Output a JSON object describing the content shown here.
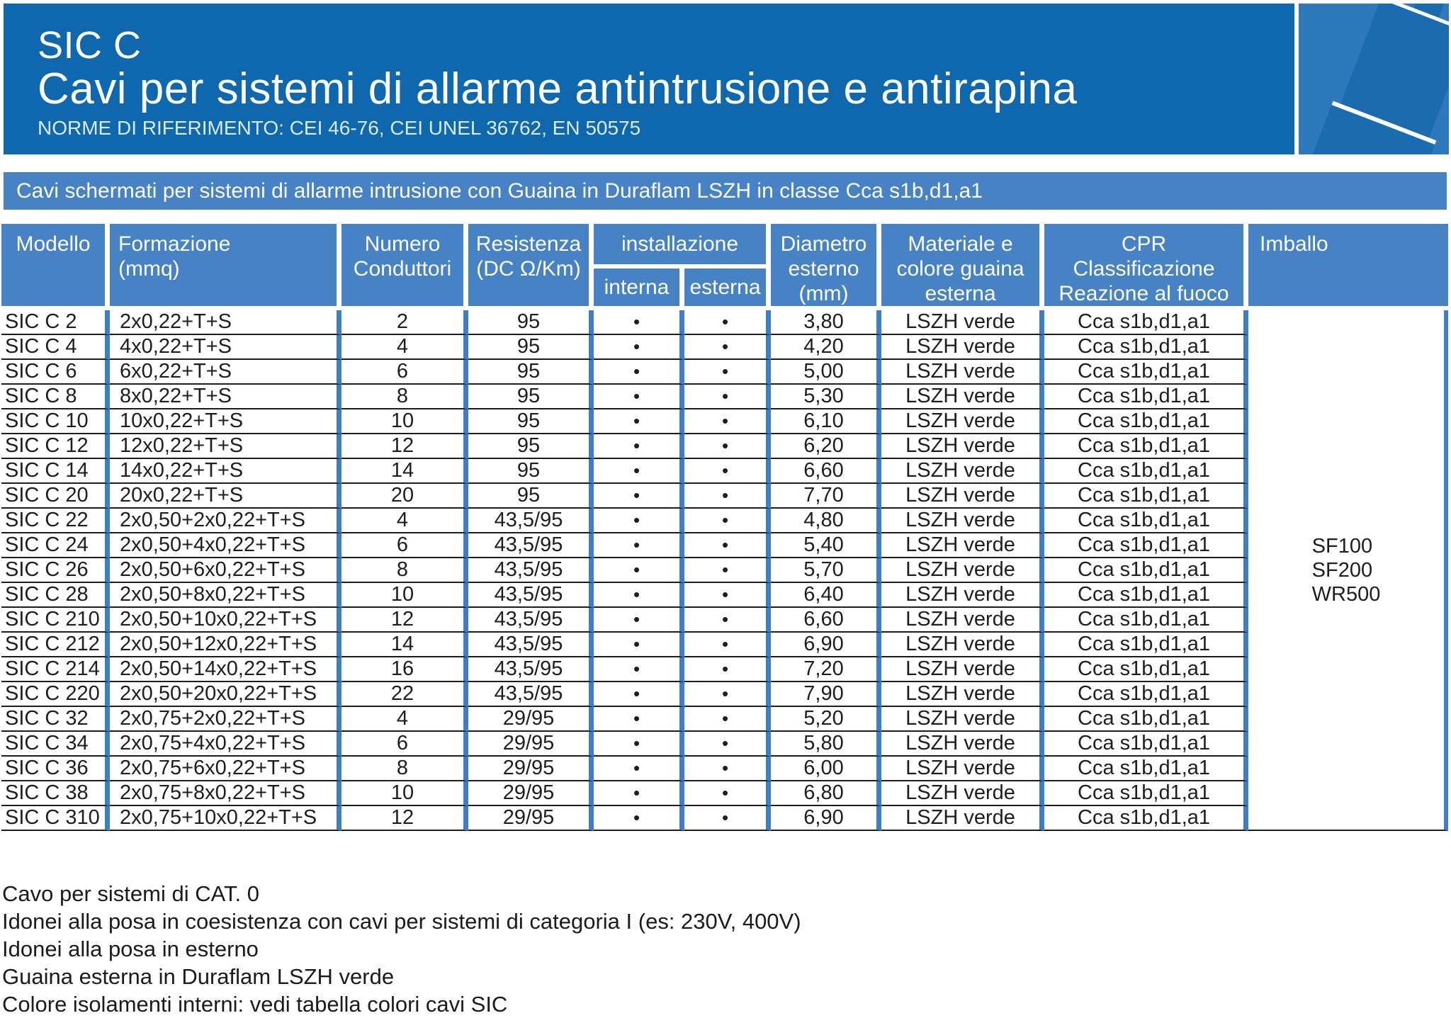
{
  "colors": {
    "dark_header_blue": "#0f67ae",
    "table_blue": "#4682c4",
    "column_separator_blue": "#3e7ec6",
    "row_line": "#1d1d1d",
    "body_text": "#1e1e1e",
    "art_background_blue": "#2d79bc",
    "art_band_blue": "#1a6bb0",
    "norms_text": "#d9ecf8"
  },
  "header": {
    "product_line": "SIC C",
    "title": "Cavi per sistemi di allarme antintrusione e antirapina",
    "reference_norms": "NORME DI RIFERIMENTO: CEI 46-76, CEI UNEL 36762, EN 50575"
  },
  "banner": {
    "text": "Cavi schermati per sistemi di allarme intrusione con Guaina in Duraflam LSZH in classe Cca s1b,d1,a1"
  },
  "table": {
    "headers": {
      "modello": "Modello",
      "formazione": "Formazione\n(mmq)",
      "numero_conduttori": "Numero\nConduttori",
      "resistenza": "Resistenza\n(DC Ω/Km)",
      "installazione": "installazione",
      "interna": "interna",
      "esterna": "esterna",
      "diametro": "Diametro\nesterno\n(mm)",
      "materiale": "Materiale e\ncolore guaina\nesterna",
      "cpr": "CPR\nClassificazione\nReazione al fuoco",
      "imballo": "Imballo"
    },
    "rows": [
      {
        "modello": "SIC C 2",
        "formazione": "2x0,22+T+S",
        "conduttori": "2",
        "resistenza": "95",
        "interna": "•",
        "esterna": "•",
        "diametro": "3,80",
        "materiale": "LSZH verde",
        "cpr": "Cca s1b,d1,a1"
      },
      {
        "modello": "SIC C 4",
        "formazione": "4x0,22+T+S",
        "conduttori": "4",
        "resistenza": "95",
        "interna": "•",
        "esterna": "•",
        "diametro": "4,20",
        "materiale": "LSZH verde",
        "cpr": "Cca s1b,d1,a1"
      },
      {
        "modello": "SIC C 6",
        "formazione": "6x0,22+T+S",
        "conduttori": "6",
        "resistenza": "95",
        "interna": "•",
        "esterna": "•",
        "diametro": "5,00",
        "materiale": "LSZH verde",
        "cpr": "Cca s1b,d1,a1"
      },
      {
        "modello": "SIC C 8",
        "formazione": "8x0,22+T+S",
        "conduttori": "8",
        "resistenza": "95",
        "interna": "•",
        "esterna": "•",
        "diametro": "5,30",
        "materiale": "LSZH verde",
        "cpr": "Cca s1b,d1,a1"
      },
      {
        "modello": "SIC C 10",
        "formazione": "10x0,22+T+S",
        "conduttori": "10",
        "resistenza": "95",
        "interna": "•",
        "esterna": "•",
        "diametro": "6,10",
        "materiale": "LSZH verde",
        "cpr": "Cca s1b,d1,a1"
      },
      {
        "modello": "SIC C 12",
        "formazione": "12x0,22+T+S",
        "conduttori": "12",
        "resistenza": "95",
        "interna": "•",
        "esterna": "•",
        "diametro": "6,20",
        "materiale": "LSZH verde",
        "cpr": "Cca s1b,d1,a1"
      },
      {
        "modello": "SIC C 14",
        "formazione": "14x0,22+T+S",
        "conduttori": "14",
        "resistenza": "95",
        "interna": "•",
        "esterna": "•",
        "diametro": "6,60",
        "materiale": "LSZH verde",
        "cpr": "Cca s1b,d1,a1"
      },
      {
        "modello": "SIC C 20",
        "formazione": "20x0,22+T+S",
        "conduttori": "20",
        "resistenza": "95",
        "interna": "•",
        "esterna": "•",
        "diametro": "7,70",
        "materiale": "LSZH verde",
        "cpr": "Cca s1b,d1,a1"
      },
      {
        "modello": "SIC C 22",
        "formazione": "2x0,50+2x0,22+T+S",
        "conduttori": "4",
        "resistenza": "43,5/95",
        "interna": "•",
        "esterna": "•",
        "diametro": "4,80",
        "materiale": "LSZH verde",
        "cpr": "Cca s1b,d1,a1"
      },
      {
        "modello": "SIC C 24",
        "formazione": "2x0,50+4x0,22+T+S",
        "conduttori": "6",
        "resistenza": "43,5/95",
        "interna": "•",
        "esterna": "•",
        "diametro": "5,40",
        "materiale": "LSZH verde",
        "cpr": "Cca s1b,d1,a1"
      },
      {
        "modello": "SIC C 26",
        "formazione": "2x0,50+6x0,22+T+S",
        "conduttori": "8",
        "resistenza": "43,5/95",
        "interna": "•",
        "esterna": "•",
        "diametro": "5,70",
        "materiale": "LSZH verde",
        "cpr": "Cca s1b,d1,a1"
      },
      {
        "modello": "SIC C 28",
        "formazione": "2x0,50+8x0,22+T+S",
        "conduttori": "10",
        "resistenza": "43,5/95",
        "interna": "•",
        "esterna": "•",
        "diametro": "6,40",
        "materiale": "LSZH verde",
        "cpr": "Cca s1b,d1,a1"
      },
      {
        "modello": "SIC C 210",
        "formazione": "2x0,50+10x0,22+T+S",
        "conduttori": "12",
        "resistenza": "43,5/95",
        "interna": "•",
        "esterna": "•",
        "diametro": "6,60",
        "materiale": "LSZH verde",
        "cpr": "Cca s1b,d1,a1"
      },
      {
        "modello": "SIC C 212",
        "formazione": "2x0,50+12x0,22+T+S",
        "conduttori": "14",
        "resistenza": "43,5/95",
        "interna": "•",
        "esterna": "•",
        "diametro": "6,90",
        "materiale": "LSZH verde",
        "cpr": "Cca s1b,d1,a1"
      },
      {
        "modello": "SIC C 214",
        "formazione": "2x0,50+14x0,22+T+S",
        "conduttori": "16",
        "resistenza": "43,5/95",
        "interna": "•",
        "esterna": "•",
        "diametro": "7,20",
        "materiale": "LSZH verde",
        "cpr": "Cca s1b,d1,a1"
      },
      {
        "modello": "SIC C 220",
        "formazione": "2x0,50+20x0,22+T+S",
        "conduttori": "22",
        "resistenza": "43,5/95",
        "interna": "•",
        "esterna": "•",
        "diametro": "7,90",
        "materiale": "LSZH verde",
        "cpr": "Cca s1b,d1,a1"
      },
      {
        "modello": "SIC C 32",
        "formazione": "2x0,75+2x0,22+T+S",
        "conduttori": "4",
        "resistenza": "29/95",
        "interna": "•",
        "esterna": "•",
        "diametro": "5,20",
        "materiale": "LSZH verde",
        "cpr": "Cca s1b,d1,a1"
      },
      {
        "modello": "SIC C 34",
        "formazione": "2x0,75+4x0,22+T+S",
        "conduttori": "6",
        "resistenza": "29/95",
        "interna": "•",
        "esterna": "•",
        "diametro": "5,80",
        "materiale": "LSZH verde",
        "cpr": "Cca s1b,d1,a1"
      },
      {
        "modello": "SIC C 36",
        "formazione": "2x0,75+6x0,22+T+S",
        "conduttori": "8",
        "resistenza": "29/95",
        "interna": "•",
        "esterna": "•",
        "diametro": "6,00",
        "materiale": "LSZH verde",
        "cpr": "Cca s1b,d1,a1"
      },
      {
        "modello": "SIC C 38",
        "formazione": "2x0,75+8x0,22+T+S",
        "conduttori": "10",
        "resistenza": "29/95",
        "interna": "•",
        "esterna": "•",
        "diametro": "6,80",
        "materiale": "LSZH verde",
        "cpr": "Cca s1b,d1,a1"
      },
      {
        "modello": "SIC C 310",
        "formazione": "2x0,75+10x0,22+T+S",
        "conduttori": "12",
        "resistenza": "29/95",
        "interna": "•",
        "esterna": "•",
        "diametro": "6,90",
        "materiale": "LSZH verde",
        "cpr": "Cca s1b,d1,a1"
      }
    ],
    "imballo_values": [
      "SF100",
      "SF200",
      "WR500"
    ]
  },
  "footer": {
    "notes": [
      "Cavo per sistemi di CAT. 0",
      "Idonei alla posa in coesistenza con cavi per sistemi di categoria I (es: 230V, 400V)",
      "Idonei alla posa in esterno",
      "Guaina esterna in Duraflam LSZH verde",
      "Colore isolamenti interni: vedi tabella colori cavi SIC"
    ]
  }
}
